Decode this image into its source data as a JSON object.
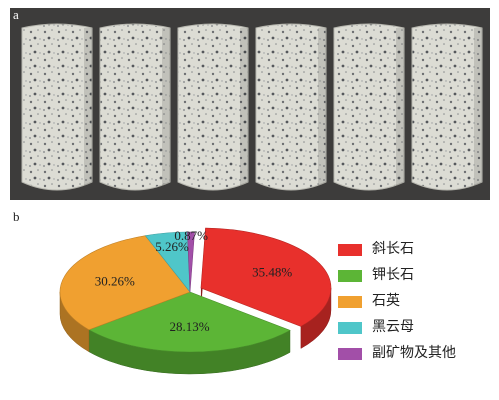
{
  "figure_labels": [
    "a",
    "b"
  ],
  "chart_data": {
    "type": "pie",
    "categories": [
      "斜长石",
      "钾长石",
      "石英",
      "黑云母",
      "副矿物及其他"
    ],
    "values": [
      35.48,
      28.13,
      30.26,
      5.26,
      0.87
    ],
    "value_labels": [
      "35.48%",
      "28.13%",
      "30.26%",
      "5.26%",
      "0.87%"
    ],
    "colors": [
      "#e8302c",
      "#5cb536",
      "#f0a030",
      "#4fc6c9",
      "#a24fa8"
    ],
    "legend": "right"
  }
}
